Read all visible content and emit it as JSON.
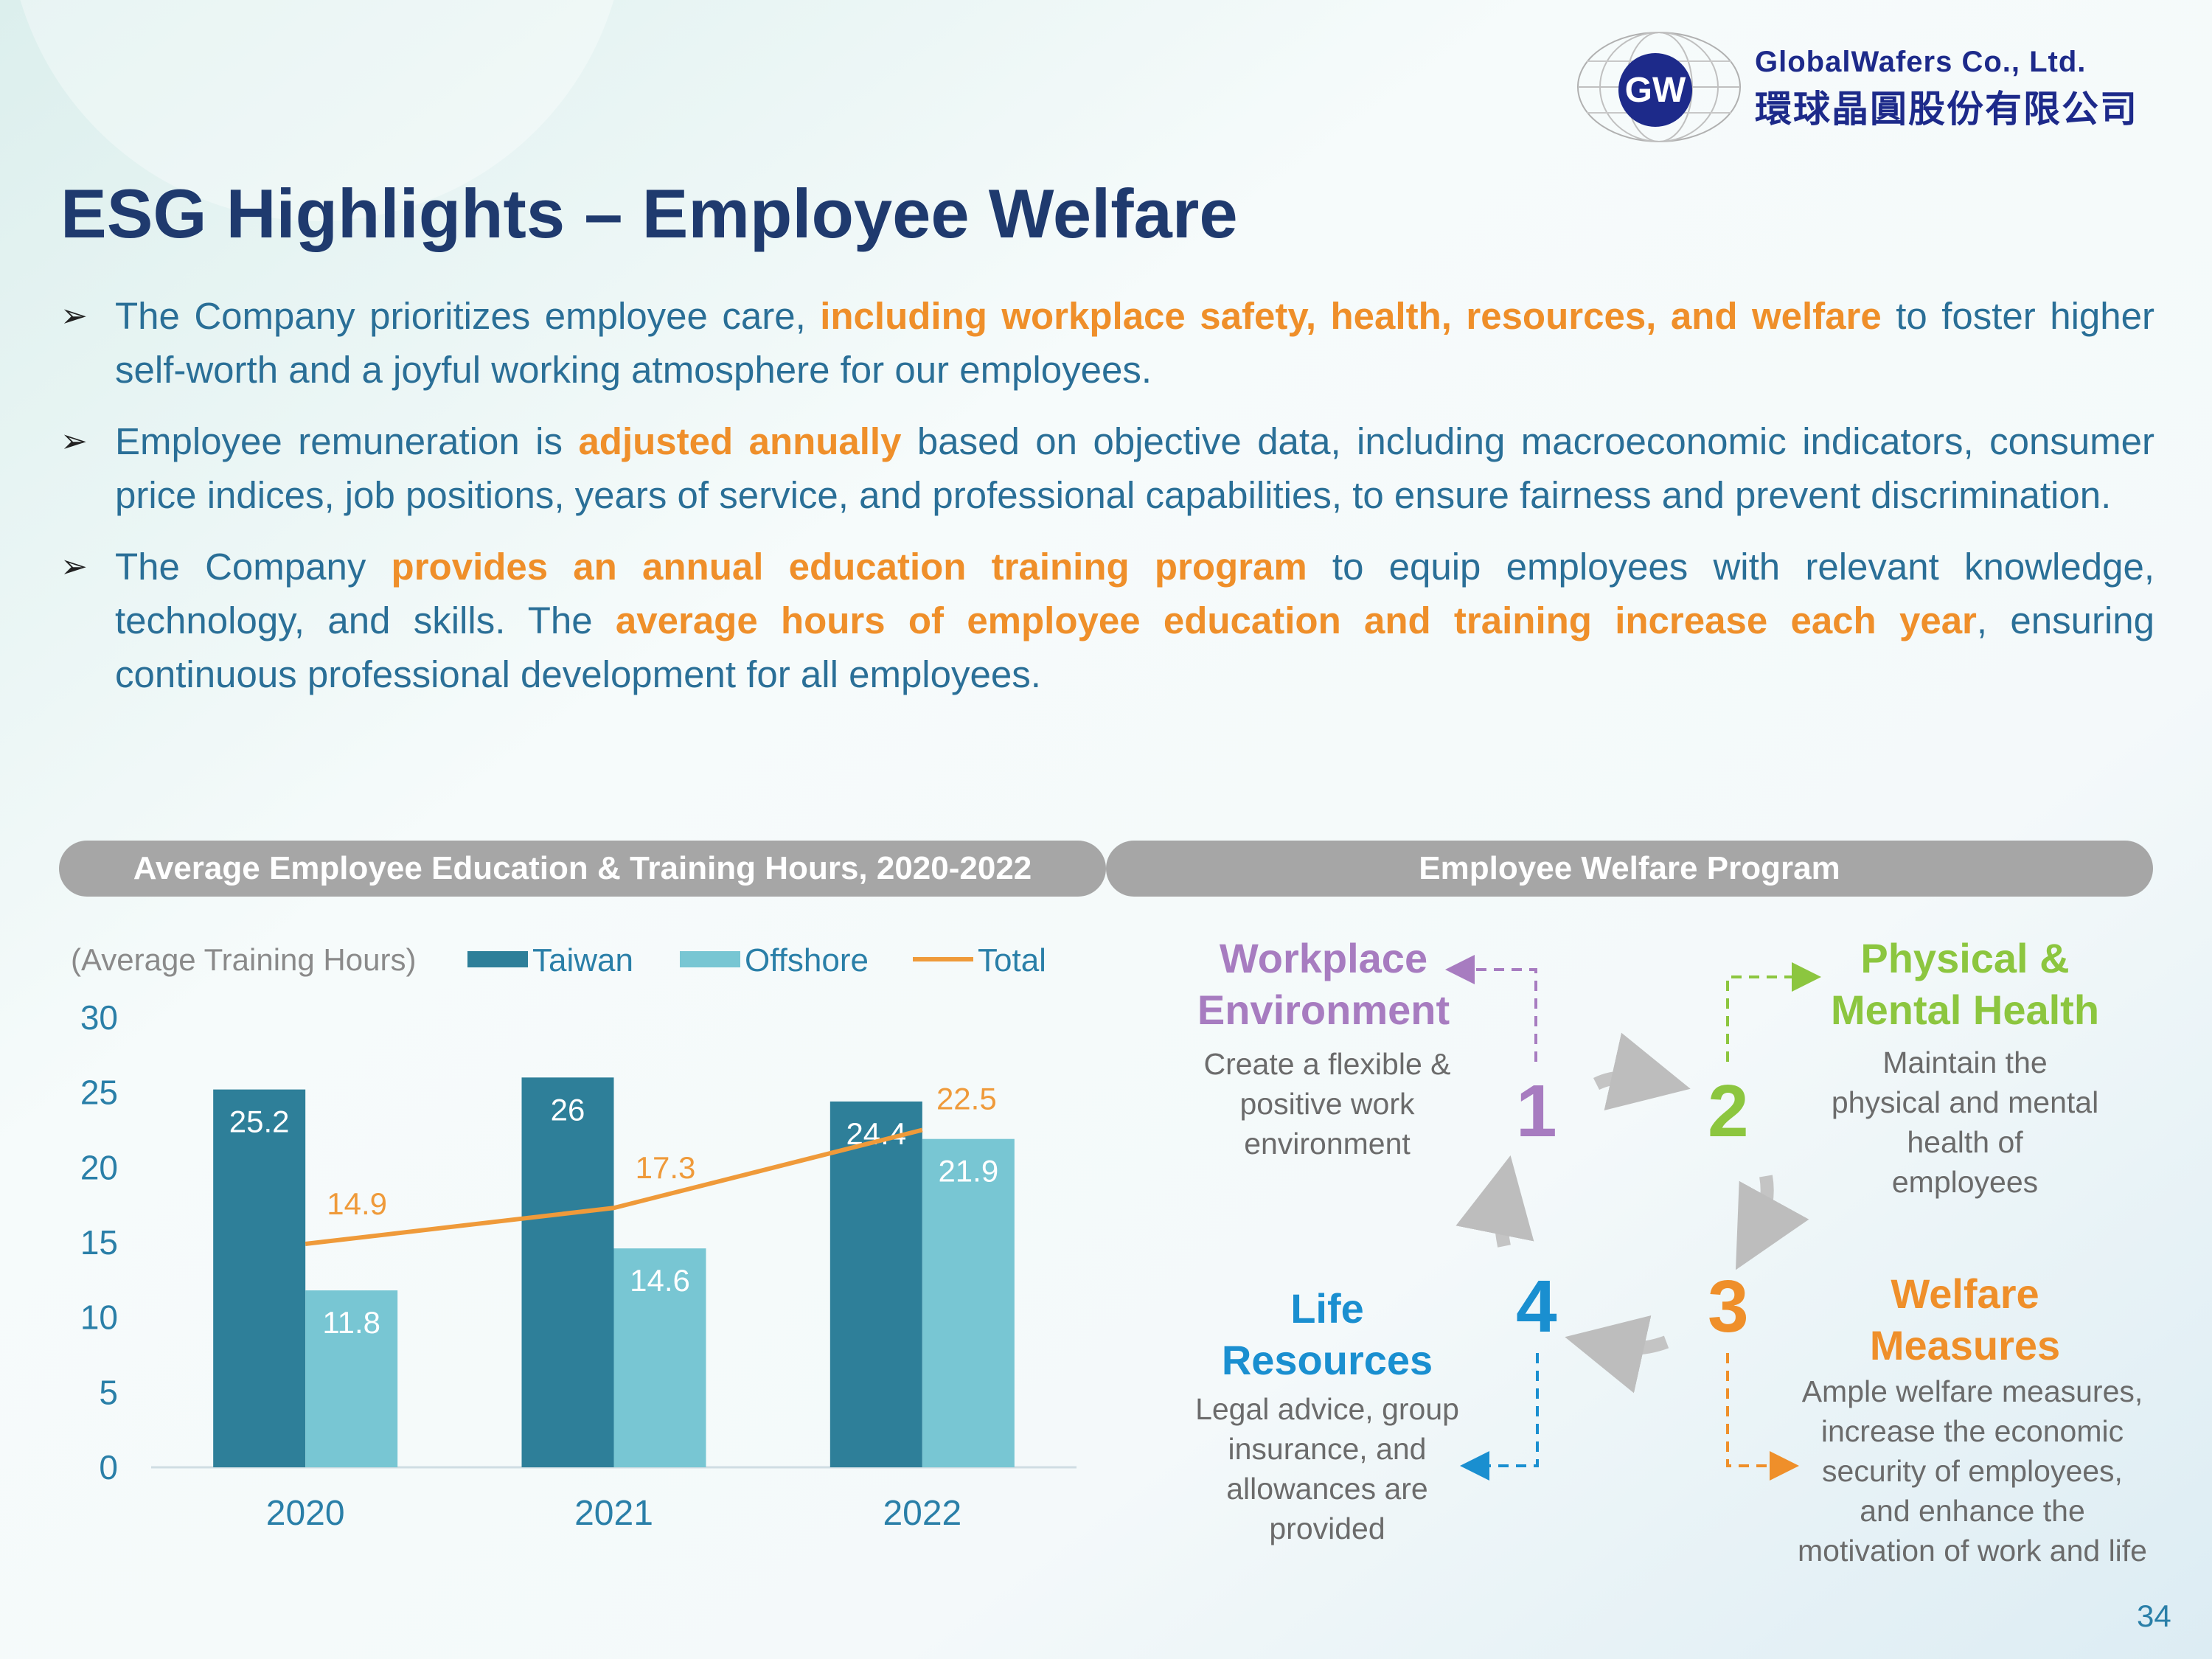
{
  "header": {
    "company_en": "GlobalWafers Co., Ltd.",
    "company_zh": "環球晶圓股份有限公司",
    "logo_text": "GW",
    "title": "ESG Highlights – Employee Welfare"
  },
  "bullets": [
    {
      "parts": [
        "The Company prioritizes employee care, ",
        "including workplace safety, health, resources, and welfare",
        " to foster higher self-worth and a joyful working atmosphere for our employees."
      ]
    },
    {
      "parts": [
        "Employee remuneration is ",
        "adjusted annually",
        " based on objective data, including macroeconomic indicators, consumer price indices, job positions, years of service, and professional capabilities, to ensure fairness and prevent discrimination."
      ]
    },
    {
      "parts": [
        "The Company ",
        "provides an annual education training program",
        " to equip employees with relevant knowledge, technology, and skills. The ",
        "average hours of employee education and training increase each year",
        ", ensuring continuous professional development for all employees."
      ]
    }
  ],
  "sections": {
    "chart_header": "Average Employee Education & Training Hours, 2020-2022",
    "welfare_header": "Employee Welfare Program"
  },
  "chart_data": {
    "type": "bar",
    "title": "",
    "ylabel": "(Average Training Hours)",
    "xlabel": "",
    "categories": [
      "2020",
      "2021",
      "2022"
    ],
    "ylim": [
      0,
      30
    ],
    "yticks": [
      0,
      5,
      10,
      15,
      20,
      25,
      30
    ],
    "series": [
      {
        "name": "Taiwan",
        "type": "bar",
        "color": "#2e7f99",
        "values": [
          25.2,
          26,
          24.4
        ]
      },
      {
        "name": "Offshore",
        "type": "bar",
        "color": "#78c6d3",
        "values": [
          11.8,
          14.6,
          21.9
        ]
      },
      {
        "name": "Total",
        "type": "line",
        "color": "#ef9a3a",
        "values": [
          14.9,
          17.3,
          22.5
        ]
      }
    ],
    "legend_position": "top",
    "grid": false
  },
  "welfare": {
    "items": [
      {
        "num": "1",
        "title": "Workplace Environment",
        "title_lines": [
          "Workplace",
          "Environment"
        ],
        "desc_lines": [
          "Create a flexible &",
          "positive work",
          "environment"
        ],
        "color": "#a77cc0"
      },
      {
        "num": "2",
        "title": "Physical & Mental Health",
        "title_lines": [
          "Physical &",
          "Mental Health"
        ],
        "desc_lines": [
          "Maintain the",
          "physical and mental",
          "health of",
          "employees"
        ],
        "color": "#8cc63f"
      },
      {
        "num": "3",
        "title": "Welfare Measures",
        "title_lines": [
          "Welfare",
          "Measures"
        ],
        "desc_lines": [
          "Ample welfare measures,",
          "increase the economic",
          "security of employees,",
          "and enhance the",
          "motivation of work and life"
        ],
        "color": "#ef8f2a"
      },
      {
        "num": "4",
        "title": "Life Resources",
        "title_lines": [
          "Life",
          "Resources"
        ],
        "desc_lines": [
          "Legal advice, group",
          "insurance, and",
          "allowances are",
          "provided"
        ],
        "color": "#1a8fd0"
      }
    ]
  },
  "page_number": "34"
}
